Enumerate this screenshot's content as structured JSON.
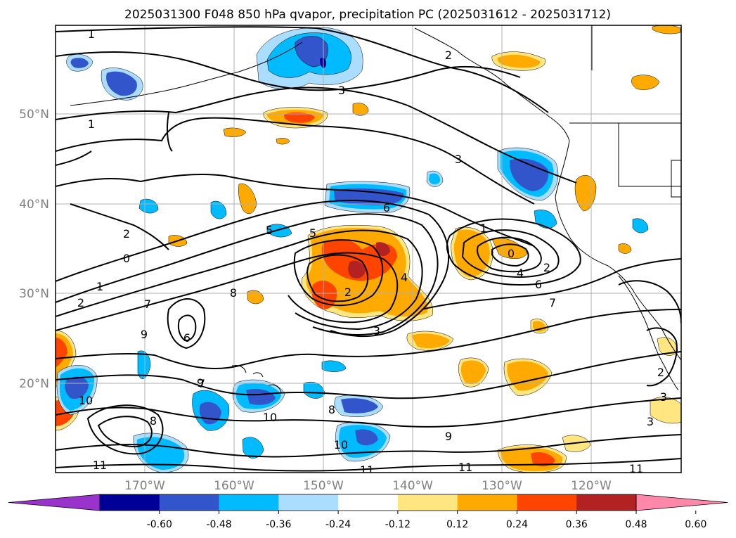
{
  "title": "2025031300 F048 850 hPa qvapor, precipitation PC (2025031612 - 2025031712)",
  "map": {
    "lat_labels": [
      "50°N",
      "40°N",
      "30°N",
      "20°N"
    ],
    "lon_labels": [
      "170°W",
      "160°W",
      "150°W",
      "140°W",
      "130°W",
      "120°W"
    ],
    "gridlines": true
  },
  "colorbar": {
    "ticks": [
      "-0.60",
      "-0.48",
      "-0.36",
      "-0.24",
      "-0.12",
      "0.12",
      "0.24",
      "0.36",
      "0.48",
      "0.60"
    ],
    "colors": [
      "#9933cc",
      "#000099",
      "#3355cc",
      "#00bbff",
      "#aaddff",
      "#ffffff",
      "#ffe680",
      "#ffaa00",
      "#ff4400",
      "#b22222",
      "#ff88aa"
    ],
    "extend": "both"
  },
  "contour_labels": [
    {
      "text": "1"
    },
    {
      "text": "2"
    },
    {
      "text": "3"
    },
    {
      "text": "1"
    },
    {
      "text": "2"
    },
    {
      "text": "3"
    },
    {
      "text": "1"
    },
    {
      "text": "2"
    },
    {
      "text": "3"
    },
    {
      "text": "4"
    },
    {
      "text": "5"
    },
    {
      "text": "6"
    },
    {
      "text": "7"
    },
    {
      "text": "8"
    },
    {
      "text": "9"
    },
    {
      "text": "10"
    },
    {
      "text": "11"
    },
    {
      "text": "0"
    },
    {
      "text": "4"
    },
    {
      "text": "5"
    },
    {
      "text": "6"
    },
    {
      "text": "7"
    },
    {
      "text": "8"
    },
    {
      "text": "9"
    },
    {
      "text": "10"
    },
    {
      "text": "11"
    },
    {
      "text": "9"
    },
    {
      "text": "11"
    },
    {
      "text": "3"
    },
    {
      "text": "2"
    },
    {
      "text": "1"
    },
    {
      "text": "0"
    },
    {
      "text": "2"
    },
    {
      "text": "6"
    },
    {
      "text": "7"
    },
    {
      "text": "8"
    },
    {
      "text": "10"
    },
    {
      "text": "11"
    },
    {
      "text": "2"
    },
    {
      "text": "3"
    }
  ]
}
